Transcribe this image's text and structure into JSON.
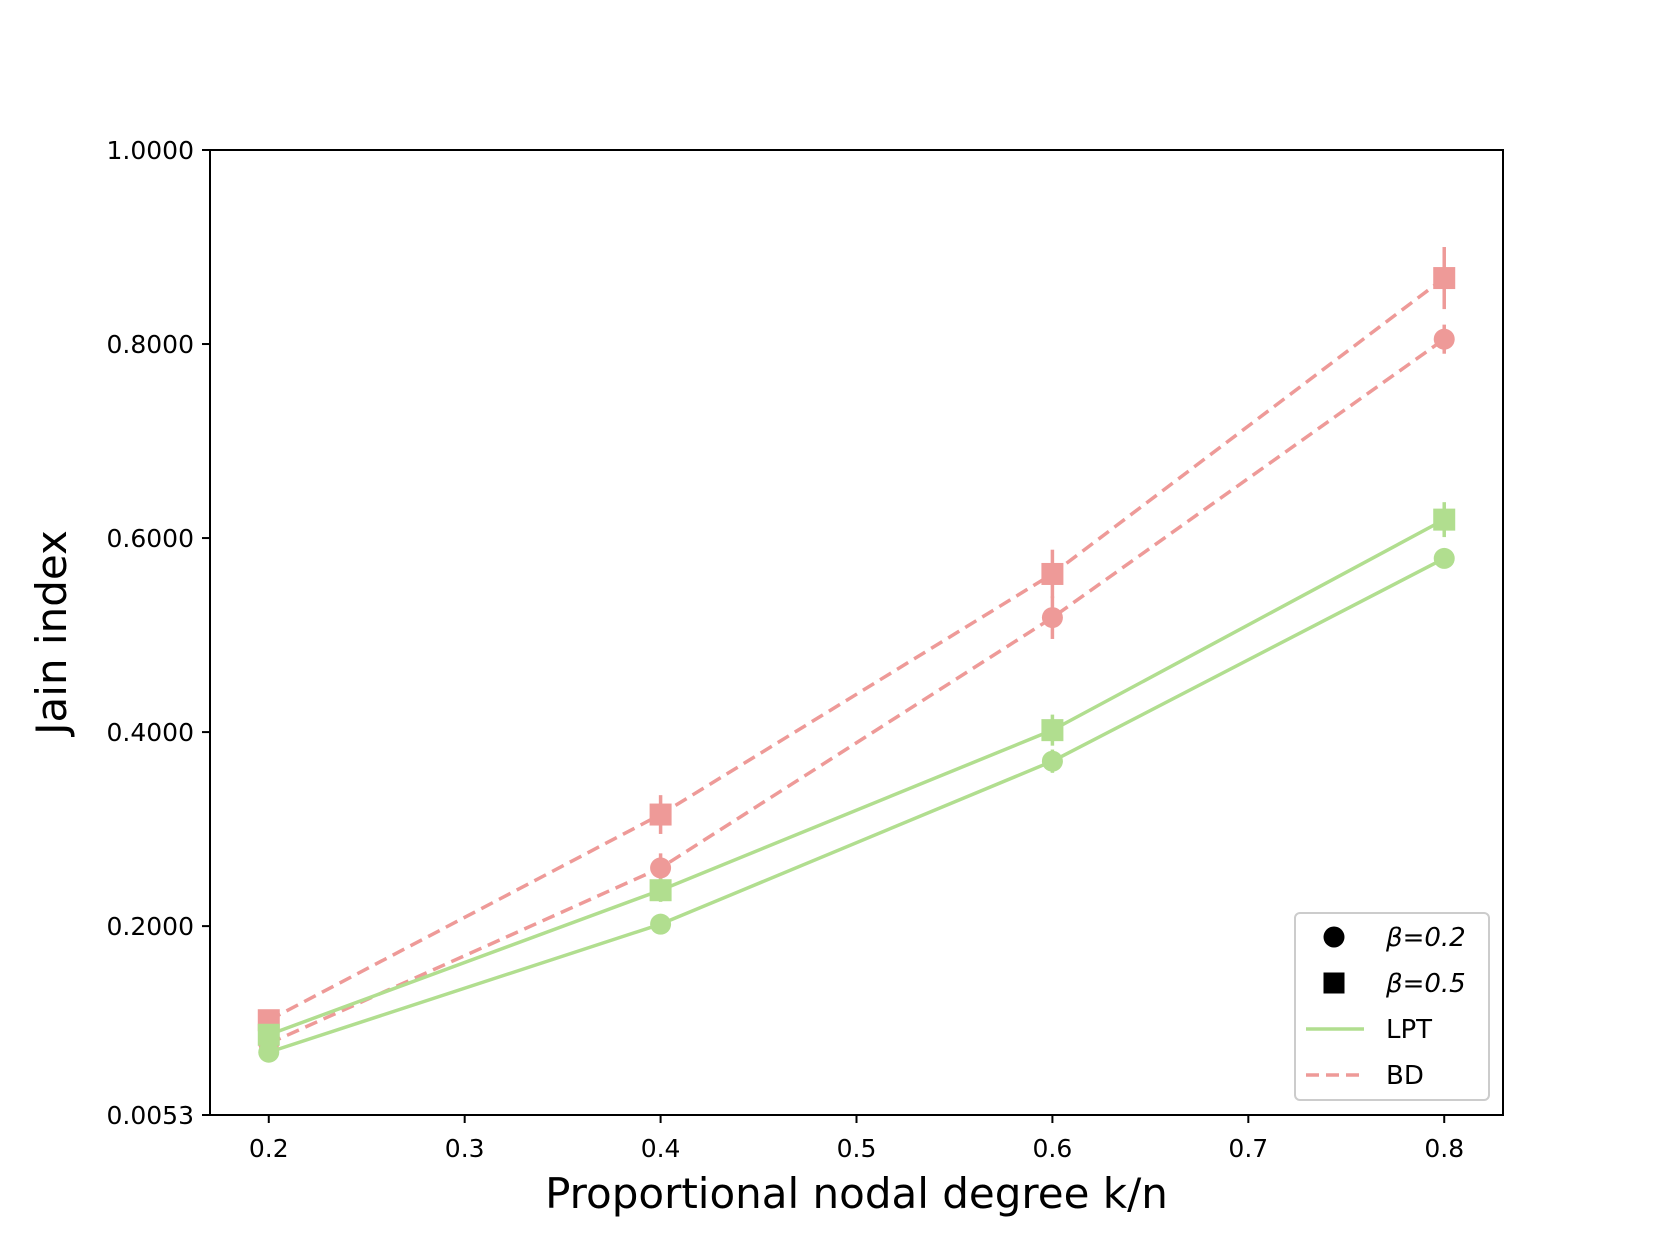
{
  "chart_data": {
    "type": "line",
    "title": "",
    "xlabel": "Proportional nodal degree k/n",
    "ylabel": "Jain index",
    "x": [
      0.2,
      0.4,
      0.6,
      0.8
    ],
    "xlim": [
      0.17,
      0.83
    ],
    "ylim": [
      0.0053,
      1.0
    ],
    "x_ticks": [
      "0.2",
      "0.3",
      "0.4",
      "0.5",
      "0.6",
      "0.7",
      "0.8"
    ],
    "x_tick_values": [
      0.2,
      0.3,
      0.4,
      0.5,
      0.6,
      0.7,
      0.8
    ],
    "y_ticks": [
      "0.0053",
      "0.2000",
      "0.4000",
      "0.6000",
      "0.8000",
      "1.0000"
    ],
    "y_tick_values": [
      0.0053,
      0.2,
      0.4,
      0.6,
      0.8,
      1.0
    ],
    "grid": false,
    "legend_position": "bottom-right",
    "series": [
      {
        "name": "BD",
        "beta": "β=0.5",
        "marker": "square",
        "style": "dashed",
        "color": "#ee9a98",
        "values": [
          0.103,
          0.315,
          0.563,
          0.868
        ],
        "errors": [
          0.006,
          0.02,
          0.025,
          0.032
        ]
      },
      {
        "name": "BD",
        "beta": "β=0.2",
        "marker": "circle",
        "style": "dashed",
        "color": "#ee9a98",
        "values": [
          0.079,
          0.26,
          0.518,
          0.805
        ],
        "errors": [
          0.005,
          0.015,
          0.022,
          0.015
        ]
      },
      {
        "name": "LPT",
        "beta": "β=0.5",
        "marker": "square",
        "style": "solid",
        "color": "#b1de8f",
        "values": [
          0.088,
          0.237,
          0.402,
          0.619
        ],
        "errors": [
          0.005,
          0.012,
          0.016,
          0.018
        ]
      },
      {
        "name": "LPT",
        "beta": "β=0.2",
        "marker": "circle",
        "style": "solid",
        "color": "#b1de8f",
        "values": [
          0.07,
          0.202,
          0.37,
          0.579
        ],
        "errors": [
          0.004,
          0.008,
          0.012,
          0.008
        ]
      }
    ],
    "legend": [
      {
        "label": "β=0.2",
        "kind": "marker-circle",
        "color": "#000000"
      },
      {
        "label": "β=0.5",
        "kind": "marker-square",
        "color": "#000000"
      },
      {
        "label": "LPT",
        "kind": "line-solid",
        "color": "#b1de8f"
      },
      {
        "label": "BD",
        "kind": "line-dashed",
        "color": "#ee9a98"
      }
    ]
  }
}
